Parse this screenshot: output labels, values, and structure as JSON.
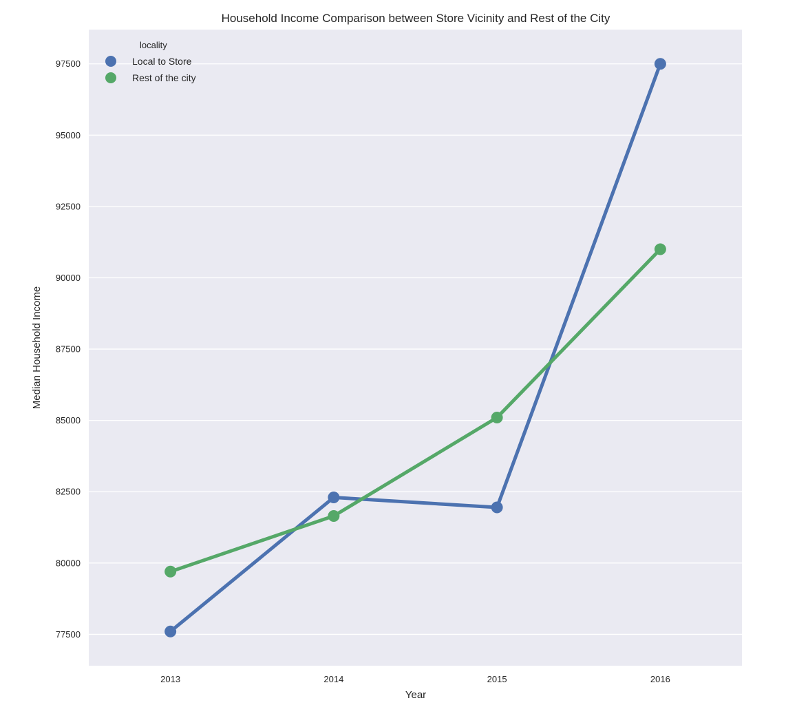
{
  "chart_data": {
    "type": "line",
    "title": "Household Income Comparison between Store Vicinity and Rest of the City",
    "xlabel": "Year",
    "ylabel": "Median Household Income",
    "categories": [
      "2013",
      "2014",
      "2015",
      "2016"
    ],
    "yticks": [
      77500,
      80000,
      82500,
      85000,
      87500,
      90000,
      92500,
      95000,
      97500
    ],
    "ylim": [
      76400,
      98700
    ],
    "grid": true,
    "legend": {
      "title": "locality",
      "placement": "top-left"
    },
    "series": [
      {
        "name": "Local to Store",
        "color": "#4c72b0",
        "values": [
          77600,
          82300,
          81950,
          97500
        ]
      },
      {
        "name": "Rest of the city",
        "color": "#55a868",
        "values": [
          79700,
          81650,
          85100,
          91000
        ]
      }
    ],
    "background_color": "#eaeaf2",
    "grid_color": "#ffffff"
  }
}
